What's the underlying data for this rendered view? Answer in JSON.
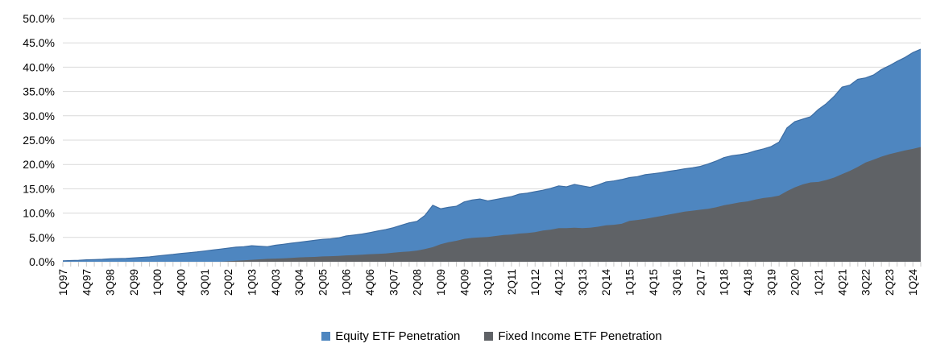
{
  "chart_data": {
    "type": "area",
    "title": "",
    "xlabel": "",
    "ylabel": "",
    "ylim": [
      0,
      50
    ],
    "y_tick_step": 5,
    "y_tick_labels": [
      "0.0%",
      "5.0%",
      "10.0%",
      "15.0%",
      "20.0%",
      "25.0%",
      "30.0%",
      "35.0%",
      "40.0%",
      "45.0%",
      "50.0%"
    ],
    "x_start_quarter": "1Q97",
    "x_end_quarter": "2Q24",
    "x_tick_labels": [
      "1Q97",
      "4Q97",
      "3Q98",
      "2Q99",
      "1Q00",
      "4Q00",
      "3Q01",
      "2Q02",
      "1Q03",
      "4Q03",
      "3Q04",
      "2Q05",
      "1Q06",
      "4Q06",
      "3Q07",
      "2Q08",
      "1Q09",
      "4Q09",
      "3Q10",
      "2Q11",
      "1Q12",
      "4Q12",
      "3Q13",
      "2Q14",
      "1Q15",
      "4Q15",
      "3Q16",
      "2Q17",
      "1Q18",
      "4Q18",
      "3Q19",
      "2Q20",
      "1Q21",
      "4Q21",
      "3Q22",
      "2Q23",
      "1Q24"
    ],
    "x_label_every_n_quarters": 3,
    "grid": "horizontal",
    "legend_position": "bottom-center",
    "mode": "overlaid-not-stacked; fixed income drawn in front of equity",
    "series": [
      {
        "name": "Equity ETF Penetration",
        "color": "#4E86C0",
        "edge_color": "#3D6DA3",
        "values": [
          0.2,
          0.25,
          0.3,
          0.4,
          0.45,
          0.5,
          0.6,
          0.65,
          0.7,
          0.8,
          0.9,
          1.0,
          1.2,
          1.35,
          1.5,
          1.7,
          1.85,
          2.0,
          2.2,
          2.4,
          2.6,
          2.8,
          3.0,
          3.1,
          3.3,
          3.2,
          3.1,
          3.4,
          3.6,
          3.8,
          4.0,
          4.2,
          4.4,
          4.6,
          4.7,
          4.9,
          5.3,
          5.5,
          5.7,
          6.0,
          6.3,
          6.6,
          7.0,
          7.5,
          8.0,
          8.3,
          9.5,
          11.6,
          10.9,
          11.2,
          11.4,
          12.3,
          12.7,
          12.9,
          12.5,
          12.8,
          13.1,
          13.4,
          13.9,
          14.1,
          14.4,
          14.7,
          15.1,
          15.6,
          15.4,
          15.9,
          15.6,
          15.3,
          15.8,
          16.4,
          16.6,
          16.9,
          17.3,
          17.5,
          17.9,
          18.1,
          18.3,
          18.6,
          18.8,
          19.1,
          19.3,
          19.6,
          20.1,
          20.7,
          21.4,
          21.8,
          22.0,
          22.3,
          22.8,
          23.2,
          23.7,
          24.6,
          27.5,
          28.8,
          29.3,
          29.8,
          31.3,
          32.5,
          34.0,
          35.9,
          36.3,
          37.5,
          37.8,
          38.4,
          39.5,
          40.3,
          41.2,
          42.0,
          43.0,
          43.7
        ]
      },
      {
        "name": "Fixed Income ETF Penetration",
        "color": "#5F6266",
        "edge_color": "#5F6266",
        "values": [
          0,
          0,
          0,
          0,
          0,
          0,
          0,
          0,
          0,
          0,
          0,
          0,
          0,
          0,
          0,
          0,
          0,
          0,
          0,
          0,
          0.0,
          0.1,
          0.2,
          0.3,
          0.4,
          0.5,
          0.6,
          0.65,
          0.7,
          0.8,
          0.9,
          0.95,
          1.0,
          1.1,
          1.15,
          1.2,
          1.3,
          1.35,
          1.45,
          1.55,
          1.6,
          1.7,
          1.85,
          2.0,
          2.1,
          2.3,
          2.6,
          3.0,
          3.6,
          4.0,
          4.3,
          4.7,
          4.9,
          5.0,
          5.1,
          5.3,
          5.5,
          5.6,
          5.8,
          5.9,
          6.1,
          6.4,
          6.6,
          6.9,
          6.9,
          7.0,
          6.9,
          7.0,
          7.2,
          7.5,
          7.6,
          7.8,
          8.4,
          8.6,
          8.8,
          9.1,
          9.4,
          9.7,
          10.0,
          10.3,
          10.5,
          10.7,
          10.9,
          11.2,
          11.6,
          11.9,
          12.2,
          12.4,
          12.8,
          13.1,
          13.3,
          13.6,
          14.5,
          15.3,
          15.9,
          16.3,
          16.4,
          16.8,
          17.3,
          18.0,
          18.7,
          19.5,
          20.4,
          21.0,
          21.6,
          22.1,
          22.5,
          22.9,
          23.2,
          23.6
        ]
      }
    ]
  },
  "colors": {
    "background": "#FFFFFF",
    "gridline": "#D9D9D9",
    "axis_line": "#D9D9D9",
    "tick_mark": "#C9C9C9",
    "axis_text": "#000000"
  },
  "legend": {
    "items": [
      {
        "label": "Equity ETF Penetration",
        "color": "#4E86C0"
      },
      {
        "label": "Fixed Income ETF Penetration",
        "color": "#5F6266"
      }
    ]
  }
}
